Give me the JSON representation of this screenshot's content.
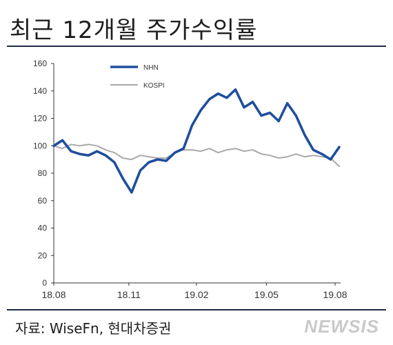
{
  "title": "최근 12개월 주가수익률",
  "source": "자료: WiseFn, 현대차증권",
  "watermark": "NEWSIS",
  "colors": {
    "nhn": "#1f4e9e",
    "kospi": "#a8a8a8",
    "rule": "#1f2a44"
  },
  "chart_data": {
    "type": "line",
    "title": "",
    "xlabel": "",
    "ylabel": "",
    "ylim": [
      0,
      160
    ],
    "yticks": [
      0,
      20,
      40,
      60,
      80,
      100,
      120,
      140,
      160
    ],
    "x_tick_labels": [
      "18.08",
      "18.11",
      "19.02",
      "19.05",
      "19.08"
    ],
    "grid": false,
    "legend": "top-left",
    "x": [
      "18.08",
      "18.08",
      "18.09",
      "18.09",
      "18.09",
      "18.10",
      "18.10",
      "18.10",
      "18.11",
      "18.11",
      "18.11",
      "18.12",
      "18.12",
      "19.01",
      "19.01",
      "19.02",
      "19.02",
      "19.02",
      "19.03",
      "19.03",
      "19.04",
      "19.04",
      "19.04",
      "19.05",
      "19.05",
      "19.06",
      "19.06",
      "19.06",
      "19.07",
      "19.07",
      "19.07",
      "19.08",
      "19.08",
      "19.08"
    ],
    "series": [
      {
        "name": "NHN",
        "values": [
          100,
          104,
          96,
          94,
          93,
          96,
          93,
          88,
          76,
          66,
          82,
          88,
          90,
          89,
          95,
          98,
          115,
          126,
          134,
          138,
          135,
          141,
          128,
          132,
          122,
          124,
          118,
          131,
          122,
          108,
          97,
          94,
          90,
          99
        ]
      },
      {
        "name": "KOSPI",
        "values": [
          100,
          98,
          101,
          100,
          101,
          100,
          97,
          95,
          91,
          90,
          93,
          92,
          91,
          91,
          95,
          97,
          97,
          96,
          98,
          95,
          97,
          98,
          96,
          97,
          94,
          93,
          91,
          92,
          94,
          92,
          93,
          92,
          91,
          85
        ]
      }
    ]
  }
}
